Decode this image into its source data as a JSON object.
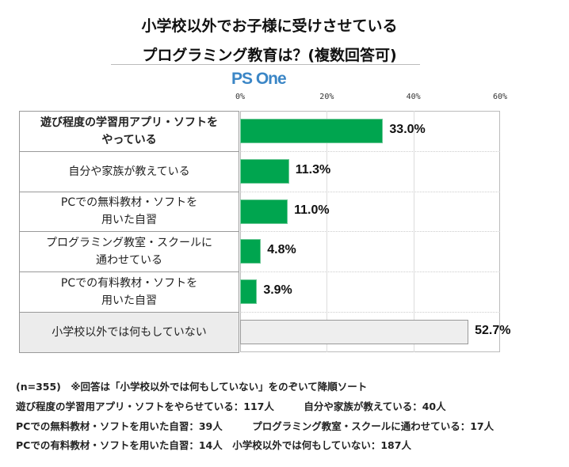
{
  "title_lines": [
    "小学校以外でお子様に受けさせている",
    "プログラミング教育は？(複数回答可)"
  ],
  "logo": "PS One",
  "chart_data": {
    "type": "bar",
    "orientation": "horizontal",
    "categories": [
      "遊び程度の学習用アプリ・ソフトを\nやっている",
      "自分や家族が教えている",
      "PCでの無料教材・ソフトを\n用いた自習",
      "プログラミング教室・スクールに\n通わせている",
      "PCでの有料教材・ソフトを\n用いた自習",
      "小学校以外では何もしていない"
    ],
    "values": [
      33.0,
      11.3,
      11.0,
      4.8,
      3.9,
      52.7
    ],
    "value_labels": [
      "33.0%",
      "11.3%",
      "11.0%",
      "4.8%",
      "3.9%",
      "52.7%"
    ],
    "xlim": [
      0,
      60
    ],
    "xticks": [
      "0%",
      "20%",
      "40%",
      "60%"
    ],
    "grid": true,
    "colors": {
      "bar": "#00a54f",
      "bar_other": "#eeeeee"
    }
  },
  "notes": [
    "(n=355)　※回答は「小学校以外では何もしていない」をのぞいて降順ソート",
    "遊び程度の学習用アプリ・ソフトをやらせている：117人　　　自分や家族が教えている：40人",
    "PCでの無料教材・ソフトを用いた自習：39人　　　プログラミング教室・スクールに通わせている：17人",
    "PCでの有料教材・ソフトを用いた自習：14人　小学校以外では何もしていない：187人"
  ]
}
